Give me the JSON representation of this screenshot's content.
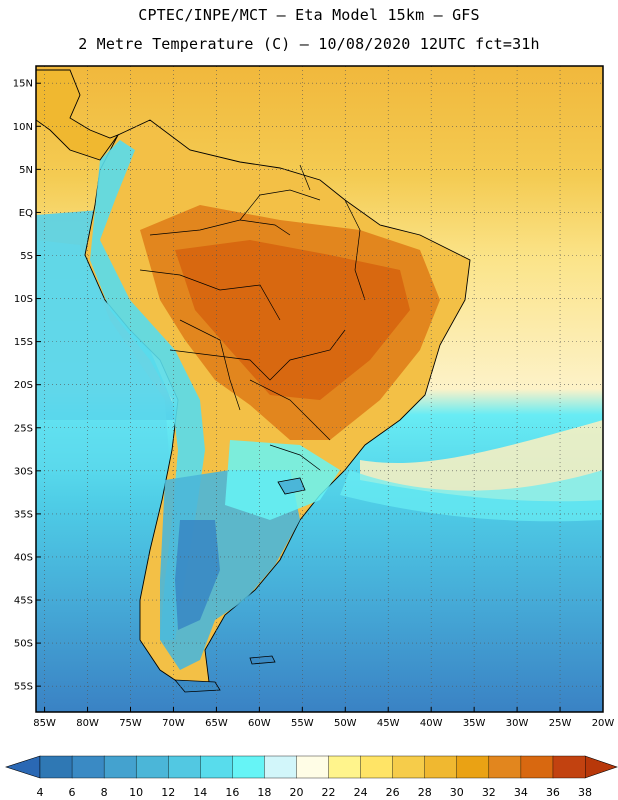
{
  "header": {
    "line1": "CPTEC/INPE/MCT –  Eta Model 15km – GFS",
    "line2": "2 Metre Temperature (C) – 10/08/2020 12UTC fct=31h"
  },
  "axes": {
    "lat_labels": [
      "15N",
      "10N",
      "5N",
      "EQ",
      "5S",
      "10S",
      "15S",
      "20S",
      "25S",
      "30S",
      "35S",
      "40S",
      "45S",
      "50S",
      "55S"
    ],
    "lat_values": [
      15,
      10,
      5,
      0,
      -5,
      -10,
      -15,
      -20,
      -25,
      -30,
      -35,
      -40,
      -45,
      -50,
      -55
    ],
    "lon_labels": [
      "85W",
      "80W",
      "75W",
      "70W",
      "65W",
      "60W",
      "55W",
      "50W",
      "45W",
      "40W",
      "35W",
      "30W",
      "25W",
      "20W"
    ],
    "lon_values": [
      -85,
      -80,
      -75,
      -70,
      -65,
      -60,
      -55,
      -50,
      -45,
      -40,
      -35,
      -30,
      -25,
      -20
    ],
    "lon_range": [
      -86,
      -20
    ],
    "lat_range": [
      -58,
      17
    ]
  },
  "colorbar": {
    "labels": [
      "4",
      "6",
      "8",
      "10",
      "12",
      "14",
      "16",
      "18",
      "20",
      "22",
      "24",
      "26",
      "28",
      "30",
      "32",
      "34",
      "36",
      "38"
    ],
    "colors": [
      "#2f78b4",
      "#3a8ac4",
      "#44a2cf",
      "#4bb6d8",
      "#52c8e2",
      "#58dcec",
      "#66f4f6",
      "#d2f6fa",
      "#fffde6",
      "#fff48c",
      "#ffe466",
      "#f6cc4a",
      "#f0b830",
      "#eaa214",
      "#e2861e",
      "#d86810",
      "#c24210"
    ],
    "low_color": "#2a68b4",
    "high_color": "#b8380a"
  }
}
